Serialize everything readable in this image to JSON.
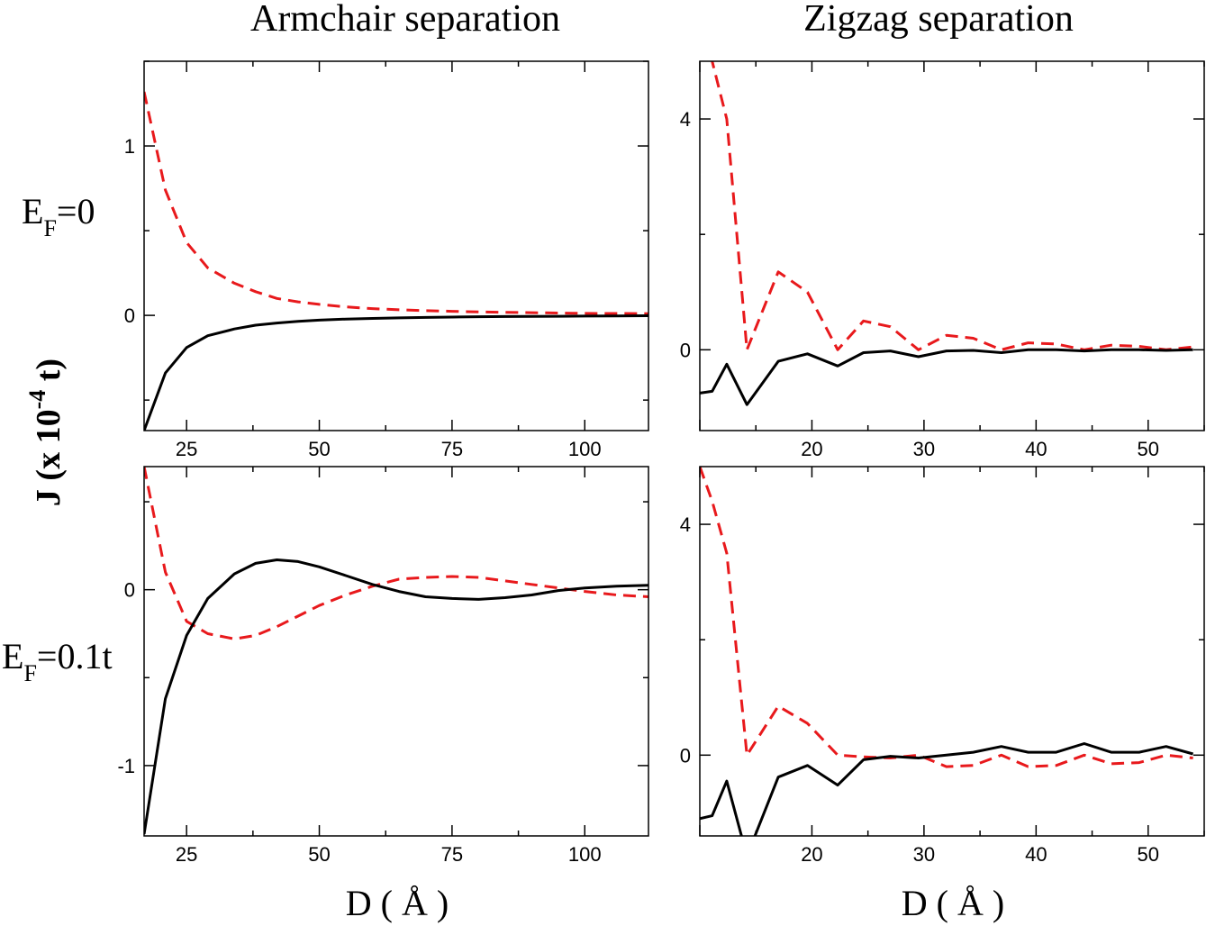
{
  "column_titles": {
    "left": "Armchair separation",
    "right": "Zigzag separation"
  },
  "row_labels": {
    "top": {
      "main": "E",
      "sub": "F",
      "rest": "=0"
    },
    "bottom": {
      "main": "E",
      "sub": "F",
      "rest": "=0.1t"
    }
  },
  "ylabel": {
    "prefix": "J (x 10",
    "exponent": "-4",
    "suffix": " t)"
  },
  "xlabels": {
    "left": "D  ( Å )",
    "right": "D ( Å )"
  },
  "colors": {
    "solid": "#000000",
    "dashed": "#e8191c"
  },
  "chart_data": [
    {
      "id": "armchair-ef0",
      "type": "line",
      "title": "Armchair separation",
      "row_label": "EF=0",
      "xlim": [
        17,
        112
      ],
      "ylim": [
        -0.68,
        1.5
      ],
      "xticks": [
        25,
        50,
        75,
        100
      ],
      "xticklabels": [
        "25",
        "50",
        "75",
        "100"
      ],
      "yticks": [
        0,
        1
      ],
      "yticklabels": [
        "0",
        "1"
      ],
      "series": [
        {
          "name": "dashed",
          "style": "dashed",
          "x": [
            17,
            21,
            25,
            29,
            34,
            38,
            42,
            46,
            50,
            55,
            60,
            65,
            70,
            75,
            80,
            85,
            90,
            95,
            100,
            106,
            112
          ],
          "y": [
            1.32,
            0.74,
            0.43,
            0.28,
            0.19,
            0.14,
            0.1,
            0.08,
            0.065,
            0.05,
            0.04,
            0.033,
            0.028,
            0.024,
            0.02,
            0.018,
            0.016,
            0.014,
            0.012,
            0.011,
            0.01
          ]
        },
        {
          "name": "solid",
          "style": "solid",
          "x": [
            17,
            21,
            25,
            29,
            34,
            38,
            42,
            46,
            50,
            55,
            60,
            65,
            70,
            75,
            80,
            85,
            90,
            95,
            100,
            106,
            112
          ],
          "y": [
            -0.68,
            -0.34,
            -0.19,
            -0.12,
            -0.08,
            -0.058,
            -0.045,
            -0.035,
            -0.028,
            -0.022,
            -0.018,
            -0.015,
            -0.012,
            -0.01,
            -0.008,
            -0.007,
            -0.006,
            -0.005,
            -0.004,
            -0.003,
            -0.002
          ]
        }
      ]
    },
    {
      "id": "zigzag-ef0",
      "type": "line",
      "title": "Zigzag separation",
      "row_label": "EF=0",
      "xlim": [
        10,
        55
      ],
      "ylim": [
        -1.4,
        5.0
      ],
      "xticks": [
        20,
        30,
        40,
        50
      ],
      "xticklabels": [
        "20",
        "30",
        "40",
        "50"
      ],
      "yticks": [
        0,
        4
      ],
      "yticklabels": [
        "0",
        "4"
      ],
      "series": [
        {
          "name": "dashed",
          "style": "dashed",
          "x": [
            10,
            11.1,
            12.4,
            14.2,
            17,
            19.6,
            22.3,
            24.6,
            27,
            29.5,
            32,
            34.4,
            36.9,
            39.3,
            41.8,
            44.3,
            46.7,
            49.2,
            51.6,
            54
          ],
          "y": [
            6.8,
            5.0,
            4.0,
            0.0,
            1.35,
            1.0,
            0.0,
            0.5,
            0.4,
            0.0,
            0.25,
            0.2,
            0.0,
            0.12,
            0.1,
            0.0,
            0.08,
            0.06,
            0.0,
            0.05
          ]
        },
        {
          "name": "solid",
          "style": "solid",
          "x": [
            10,
            11.1,
            12.4,
            14.2,
            17,
            19.6,
            22.3,
            24.6,
            27,
            29.5,
            32,
            34.4,
            36.9,
            39.3,
            41.8,
            44.3,
            46.7,
            49.2,
            51.6,
            54
          ],
          "y": [
            -0.75,
            -0.72,
            -0.25,
            -0.95,
            -0.2,
            -0.07,
            -0.28,
            -0.05,
            -0.02,
            -0.12,
            -0.02,
            -0.01,
            -0.05,
            0.0,
            0.0,
            -0.02,
            0.0,
            0.0,
            -0.01,
            0.0
          ]
        }
      ]
    },
    {
      "id": "armchair-ef01",
      "type": "line",
      "title": "Armchair separation",
      "row_label": "EF=0.1t",
      "xlabel": "D  ( Å )",
      "xlim": [
        17,
        112
      ],
      "ylim": [
        -1.4,
        0.7
      ],
      "xticks": [
        25,
        50,
        75,
        100
      ],
      "xticklabels": [
        "25",
        "50",
        "75",
        "100"
      ],
      "yticks": [
        -1,
        0
      ],
      "yticklabels": [
        "-1",
        "0"
      ],
      "series": [
        {
          "name": "dashed",
          "style": "dashed",
          "x": [
            17,
            21,
            25,
            29,
            34,
            38,
            42,
            46,
            50,
            55,
            60,
            65,
            70,
            75,
            80,
            85,
            90,
            95,
            100,
            106,
            112
          ],
          "y": [
            0.7,
            0.1,
            -0.18,
            -0.25,
            -0.28,
            -0.26,
            -0.21,
            -0.15,
            -0.09,
            -0.03,
            0.02,
            0.06,
            0.07,
            0.075,
            0.07,
            0.05,
            0.03,
            0.01,
            -0.01,
            -0.03,
            -0.04
          ]
        },
        {
          "name": "solid",
          "style": "solid",
          "x": [
            17,
            21,
            25,
            29,
            34,
            38,
            42,
            46,
            50,
            55,
            60,
            65,
            70,
            75,
            80,
            85,
            90,
            95,
            100,
            106,
            112
          ],
          "y": [
            -1.39,
            -0.62,
            -0.26,
            -0.05,
            0.09,
            0.15,
            0.17,
            0.16,
            0.13,
            0.08,
            0.03,
            -0.01,
            -0.04,
            -0.05,
            -0.055,
            -0.045,
            -0.03,
            -0.005,
            0.01,
            0.02,
            0.025
          ]
        }
      ]
    },
    {
      "id": "zigzag-ef01",
      "type": "line",
      "title": "Zigzag separation",
      "row_label": "EF=0.1t",
      "xlabel": "D ( Å )",
      "xlim": [
        10,
        55
      ],
      "ylim": [
        -1.4,
        5.0
      ],
      "xticks": [
        20,
        30,
        40,
        50
      ],
      "xticklabels": [
        "20",
        "30",
        "40",
        "50"
      ],
      "yticks": [
        0,
        4
      ],
      "yticklabels": [
        "0",
        "4"
      ],
      "series": [
        {
          "name": "dashed",
          "style": "dashed",
          "x": [
            10,
            11.1,
            12.4,
            14.2,
            17,
            19.6,
            22.3,
            24.6,
            27,
            29.5,
            32,
            34.4,
            36.9,
            39.3,
            41.8,
            44.3,
            46.7,
            49.2,
            51.6,
            54
          ],
          "y": [
            5.0,
            4.4,
            3.5,
            0.0,
            0.85,
            0.55,
            0.0,
            -0.03,
            -0.05,
            0.0,
            -0.2,
            -0.18,
            0.0,
            -0.2,
            -0.18,
            0.0,
            -0.15,
            -0.13,
            0.0,
            -0.05
          ]
        },
        {
          "name": "solid",
          "style": "solid",
          "x": [
            10,
            11.1,
            12.4,
            14.2,
            17,
            19.6,
            22.3,
            24.6,
            27,
            29.5,
            32,
            34.4,
            36.9,
            39.3,
            41.8,
            44.3,
            46.7,
            49.2,
            51.6,
            54
          ],
          "y": [
            -1.1,
            -1.05,
            -0.45,
            -1.75,
            -0.38,
            -0.18,
            -0.52,
            -0.08,
            -0.02,
            -0.05,
            0.0,
            0.05,
            0.15,
            0.05,
            0.05,
            0.2,
            0.05,
            0.05,
            0.15,
            0.02
          ]
        }
      ]
    }
  ]
}
